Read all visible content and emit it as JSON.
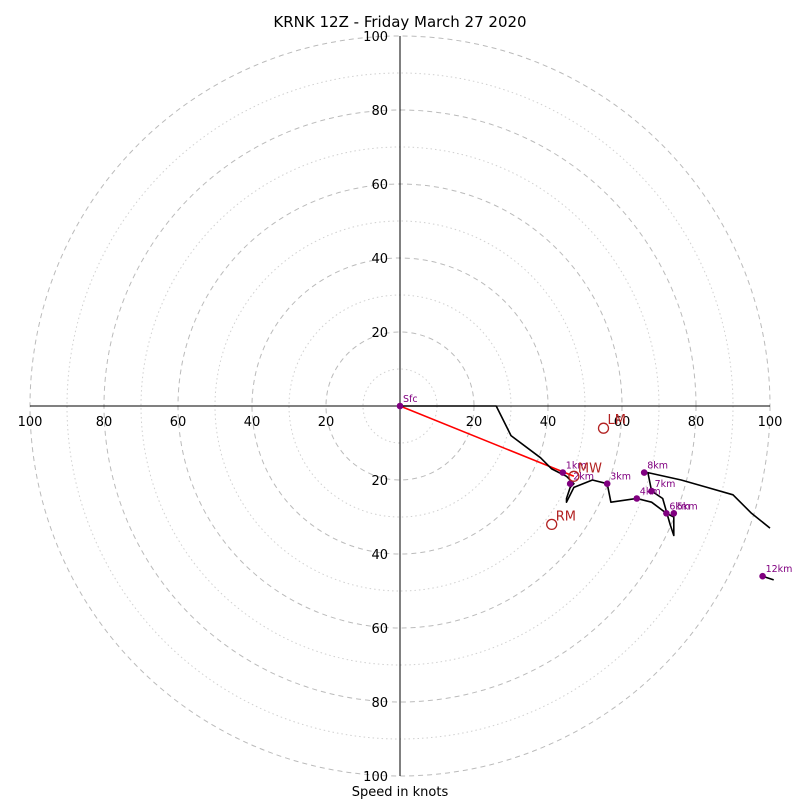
{
  "chart_data": {
    "type": "scatter",
    "title": "KRNK 12Z - Friday March 27 2020",
    "xlabel": "Speed in knots",
    "rmax": 100,
    "ring_ticks": [
      20,
      40,
      60,
      80,
      100
    ],
    "axis_tick_labels": {
      "top": [
        "20",
        "40",
        "60",
        "80",
        "100"
      ],
      "bottom": [
        "20",
        "40",
        "60",
        "80",
        "100"
      ],
      "left": [
        "100",
        "80",
        "60",
        "40",
        "20"
      ],
      "right": [
        "20",
        "40",
        "60",
        "80",
        "100"
      ]
    },
    "grid": true,
    "hodograph_uv": [
      [
        0,
        0
      ],
      [
        26,
        0
      ],
      [
        30,
        -8
      ],
      [
        38,
        -14
      ],
      [
        41,
        -17
      ],
      [
        43,
        -18
      ],
      [
        45,
        -19
      ],
      [
        47,
        -21
      ],
      [
        46,
        -22
      ],
      [
        45,
        -25
      ],
      [
        45,
        -26
      ],
      [
        47,
        -22
      ],
      [
        52,
        -20
      ],
      [
        56,
        -21
      ],
      [
        57,
        -26
      ],
      [
        64,
        -25
      ],
      [
        68,
        -26
      ],
      [
        72,
        -29
      ],
      [
        74,
        -30
      ],
      [
        74,
        -35
      ],
      [
        73,
        -32
      ],
      [
        71,
        -25
      ],
      [
        68,
        -23
      ],
      [
        67,
        -18
      ],
      [
        76,
        -20
      ],
      [
        83,
        -22
      ],
      [
        90,
        -24
      ],
      [
        95,
        -29
      ],
      [
        100,
        -33
      ]
    ],
    "hodograph_tail_uv": [
      [
        98,
        -46
      ],
      [
        101,
        -47
      ]
    ],
    "height_points": [
      {
        "label": "Sfc",
        "u": 0,
        "v": 0
      },
      {
        "label": "1km",
        "u": 44,
        "v": -18
      },
      {
        "label": "2km",
        "u": 46,
        "v": -21
      },
      {
        "label": "3km",
        "u": 56,
        "v": -21
      },
      {
        "label": "4km",
        "u": 64,
        "v": -25
      },
      {
        "label": "5km",
        "u": 74,
        "v": -29
      },
      {
        "label": "6km",
        "u": 72,
        "v": -29
      },
      {
        "label": "7km",
        "u": 68,
        "v": -23
      },
      {
        "label": "8km",
        "u": 66,
        "v": -18
      },
      {
        "label": "12km",
        "u": 98,
        "v": -46
      }
    ],
    "motion_points": [
      {
        "label": "LM",
        "u": 55,
        "v": -6
      },
      {
        "label": "MW",
        "u": 47,
        "v": -19
      },
      {
        "label": "RM",
        "u": 41,
        "v": -32
      }
    ],
    "shear_vector": {
      "from": [
        0,
        0
      ],
      "to": [
        47,
        -19
      ]
    },
    "colors": {
      "hodograph": "#000000",
      "height_points": "#800080",
      "motion": "#b22222",
      "shear": "#ff0000",
      "grid": "#bbbbbb"
    }
  }
}
